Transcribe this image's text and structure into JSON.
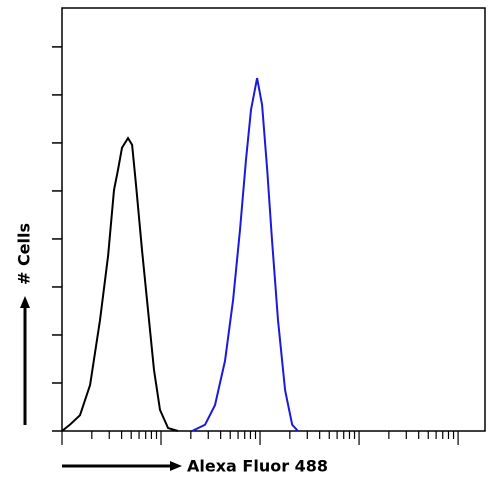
{
  "chart_data": {
    "type": "line",
    "x_label": "Alexa Fluor 488",
    "y_label": "# Cells",
    "xscale": "log",
    "xlim": [
      1,
      18700
    ],
    "ylim": [
      0,
      8.81
    ],
    "xticks": [
      1,
      2,
      3,
      4,
      5,
      6,
      7,
      8,
      9,
      10,
      20,
      30,
      40,
      50,
      60,
      70,
      80,
      90,
      100,
      200,
      300,
      400,
      500,
      600,
      700,
      800,
      900,
      1000,
      2000,
      3000,
      4000,
      5000,
      6000,
      7000,
      8000,
      9000,
      10000
    ],
    "yticks": [
      0,
      1,
      2,
      3,
      4,
      5,
      6,
      7,
      8
    ],
    "series": [
      {
        "color": "#000000",
        "x": [
          1,
          1.2,
          1.52,
          1.92,
          2.42,
          2.92,
          3.35,
          3.68,
          4.04,
          4.64,
          5.1,
          5.59,
          6.43,
          7.39,
          8.5,
          9.77,
          11.8,
          14.8
        ],
        "values": [
          0,
          0.13,
          0.33,
          0.96,
          2.31,
          3.65,
          5.02,
          5.44,
          5.9,
          6.1,
          5.96,
          5.13,
          3.77,
          2.52,
          1.27,
          0.44,
          0.06,
          0
        ]
      },
      {
        "color": "#1a1adc",
        "x": [
          20.6,
          27.8,
          35.1,
          44.3,
          53.4,
          62.8,
          72.2,
          81.1,
          93.3,
          105,
          118,
          132,
          152,
          179,
          211,
          242
        ],
        "values": [
          0,
          0.13,
          0.54,
          1.46,
          2.73,
          4.19,
          5.65,
          6.69,
          7.35,
          6.79,
          5.44,
          3.98,
          2.31,
          0.85,
          0.13,
          0
        ]
      }
    ]
  }
}
